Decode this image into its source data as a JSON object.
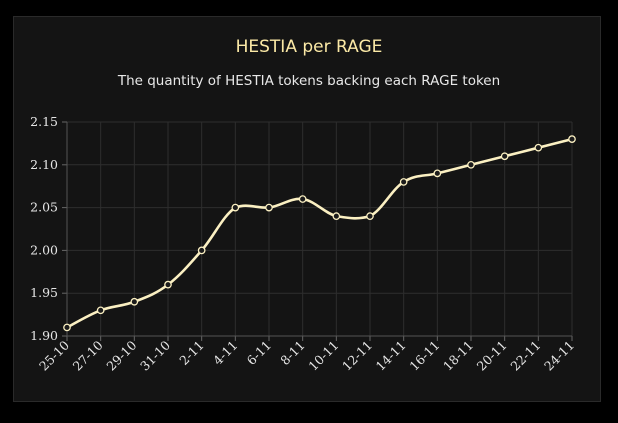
{
  "chart_data": {
    "type": "line",
    "title": "HESTIA per RAGE",
    "subtitle": "The quantity of HESTIA tokens backing each RAGE token",
    "xlabel": "",
    "ylabel": "",
    "categories": [
      "25-10",
      "27-10",
      "29-10",
      "31-10",
      "2-11",
      "4-11",
      "6-11",
      "8-11",
      "10-11",
      "12-11",
      "14-11",
      "16-11",
      "18-11",
      "20-11",
      "22-11",
      "24-11"
    ],
    "series": [
      {
        "values": [
          1.91,
          1.93,
          1.94,
          1.96,
          2.0,
          2.05,
          2.05,
          2.06,
          2.04,
          2.04,
          2.08,
          2.09,
          2.1,
          2.11,
          2.12,
          2.13
        ]
      }
    ],
    "ylim": [
      1.9,
      2.15
    ],
    "yticks": [
      "1.90",
      "1.95",
      "2.00",
      "2.05",
      "2.10",
      "2.15"
    ],
    "grid": true,
    "legend": "none",
    "colors": {
      "line": "#fbf0c2",
      "title": "#fbe9a6",
      "background": "#141414",
      "grid": "#2e2e2e"
    }
  }
}
